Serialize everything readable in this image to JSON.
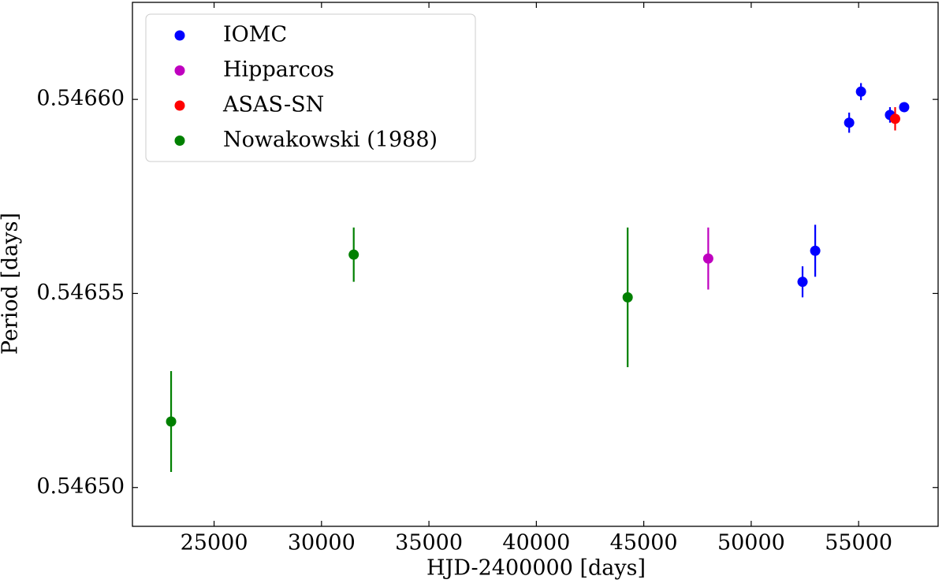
{
  "chart_data": {
    "type": "scatter",
    "x_label": "HJD-2400000 [days]",
    "y_label": "Period [days]",
    "xlim": [
      21200,
      58700
    ],
    "ylim": [
      0.54649,
      0.546625
    ],
    "xticks": [
      25000,
      30000,
      35000,
      40000,
      45000,
      50000,
      55000
    ],
    "yticks": [
      {
        "value": 0.5465,
        "label": "0.54650"
      },
      0.54655,
      {
        "value": 0.5466,
        "label": "0.54660"
      }
    ],
    "legend": "upper left",
    "series": [
      {
        "name": "IOMC",
        "color": "#0000ff",
        "x": [
          52390,
          52980,
          54560,
          55110,
          56460,
          57120
        ],
        "values": [
          0.546553,
          0.546561,
          0.546594,
          0.546602,
          0.546596,
          0.546598
        ],
        "errors": [
          4e-06,
          6.7e-06,
          2.6e-06,
          2.2e-06,
          2e-06,
          1e-06
        ]
      },
      {
        "name": "Hipparcos",
        "color": "#bf00bf",
        "x": [
          48000
        ],
        "values": [
          0.546559
        ],
        "errors": [
          8e-06
        ]
      },
      {
        "name": "ASAS-SN",
        "color": "#ff0000",
        "x": [
          56700
        ],
        "values": [
          0.546595
        ],
        "errors": [
          3e-06
        ]
      },
      {
        "name": "Nowakowski (1988)",
        "color": "#008000",
        "x": [
          23000,
          31500,
          44250
        ],
        "values": [
          0.546517,
          0.54656,
          0.546549
        ],
        "errors": [
          1.3e-05,
          7e-06,
          1.8e-05
        ]
      }
    ]
  }
}
